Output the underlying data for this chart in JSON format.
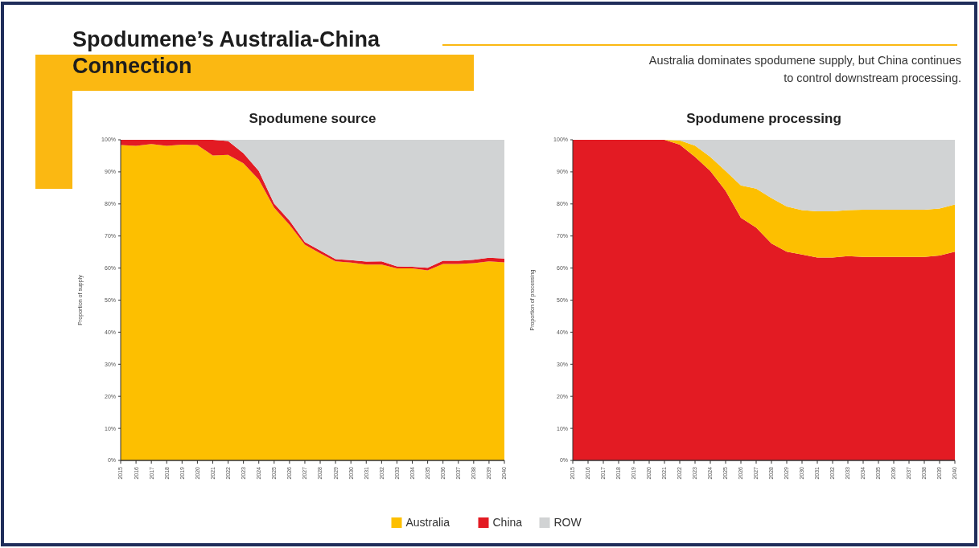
{
  "chart_data": [
    {
      "type": "area",
      "stacked": true,
      "title": "Spodumene source",
      "ylabel": "Proportion of supply",
      "legend": "bottom",
      "annotations": [
        "Spodumene’s Australia-China Connection",
        "Australia dominates spodumene supply, but China continues to control downstream processing."
      ],
      "categories": [
        "2015",
        "2016",
        "2017",
        "2018",
        "2019",
        "2020",
        "2021",
        "2022",
        "2023",
        "2024",
        "2025",
        "2026",
        "2027",
        "2028",
        "2029",
        "2030",
        "2031",
        "2032",
        "2033",
        "2034",
        "2035",
        "2036",
        "2037",
        "2038",
        "2039",
        "2040"
      ],
      "ylim": [
        0,
        100
      ],
      "yticks": [
        {
          "value": 0,
          "label": "0%"
        },
        {
          "value": 10,
          "label": "10%"
        },
        {
          "value": 20,
          "label": "20%"
        },
        {
          "value": 30,
          "label": "30%"
        },
        {
          "value": 40,
          "label": "40%"
        },
        {
          "value": 50,
          "label": "50%"
        },
        {
          "value": 60,
          "label": "60%"
        },
        {
          "value": 70,
          "label": "70%"
        },
        {
          "value": 80,
          "label": "80%"
        },
        {
          "value": 90,
          "label": "90%"
        },
        {
          "value": 100,
          "label": "100%"
        }
      ],
      "series": [
        {
          "name": "Australia",
          "color": "#fdbf00",
          "values": [
            98.4,
            98.1,
            98.7,
            98.1,
            98.5,
            98.4,
            95.1,
            95.3,
            92.7,
            87.6,
            78.8,
            73.5,
            67.3,
            64.6,
            62.1,
            61.7,
            61.1,
            61.1,
            59.9,
            59.9,
            59.3,
            61.3,
            61.3,
            61.5,
            62.1,
            61.8
          ]
        },
        {
          "name": "China",
          "color": "#e31b23",
          "values": [
            1.6,
            1.9,
            1.3,
            1.9,
            1.5,
            1.6,
            4.9,
            4.3,
            3.1,
            2.7,
            1.3,
            1.3,
            0.8,
            0.9,
            0.7,
            0.8,
            0.9,
            1.0,
            0.6,
            0.5,
            0.8,
            1.0,
            1.0,
            1.1,
            1.1,
            1.2
          ]
        },
        {
          "name": "ROW",
          "color": "#d1d3d4",
          "values": [
            0,
            0,
            0,
            0,
            0,
            0,
            0,
            0.4,
            4.2,
            9.7,
            19.9,
            25.2,
            31.9,
            34.5,
            37.2,
            37.5,
            38,
            37.9,
            39.5,
            39.6,
            39.9,
            37.7,
            37.7,
            37.4,
            36.8,
            37
          ]
        }
      ]
    },
    {
      "type": "area",
      "stacked": true,
      "title": "Spodumene processing",
      "ylabel": "Proportion of processing",
      "legend": "bottom",
      "categories": [
        "2015",
        "2016",
        "2017",
        "2018",
        "2019",
        "2020",
        "2021",
        "2022",
        "2023",
        "2024",
        "2025",
        "2026",
        "2027",
        "2028",
        "2029",
        "2030",
        "2031",
        "2032",
        "2033",
        "2034",
        "2035",
        "2036",
        "2037",
        "2038",
        "2039",
        "2040"
      ],
      "ylim": [
        0,
        100
      ],
      "yticks": [
        {
          "value": 0,
          "label": "0%"
        },
        {
          "value": 10,
          "label": "10%"
        },
        {
          "value": 20,
          "label": "20%"
        },
        {
          "value": 30,
          "label": "30%"
        },
        {
          "value": 40,
          "label": "40%"
        },
        {
          "value": 50,
          "label": "50%"
        },
        {
          "value": 60,
          "label": "60%"
        },
        {
          "value": 70,
          "label": "70%"
        },
        {
          "value": 80,
          "label": "80%"
        },
        {
          "value": 90,
          "label": "90%"
        },
        {
          "value": 100,
          "label": "100%"
        }
      ],
      "series": [
        {
          "name": "China",
          "color": "#e31b23",
          "values": [
            100,
            100,
            100,
            100,
            100,
            100,
            100,
            98.5,
            94.7,
            90.3,
            84.1,
            75.7,
            72.6,
            67.7,
            65.1,
            64.2,
            63.3,
            63.3,
            63.7,
            63.5,
            63.5,
            63.5,
            63.5,
            63.5,
            63.9,
            65.1
          ]
        },
        {
          "name": "Australia",
          "color": "#fdbf00",
          "values": [
            0,
            0,
            0,
            0,
            0,
            0,
            0,
            1.3,
            3.5,
            4.4,
            6.2,
            10.1,
            12.2,
            14.1,
            14.1,
            13.9,
            14.4,
            14.4,
            14.4,
            14.7,
            14.7,
            14.7,
            14.7,
            14.7,
            14.7,
            14.7
          ]
        },
        {
          "name": "ROW",
          "color": "#d1d3d4",
          "values": [
            0,
            0,
            0,
            0,
            0,
            0,
            0,
            0.2,
            1.8,
            5.3,
            9.7,
            14.2,
            15.2,
            18.2,
            20.8,
            21.9,
            22.3,
            22.3,
            21.9,
            21.8,
            21.8,
            21.8,
            21.8,
            21.8,
            21.4,
            20.2
          ]
        }
      ]
    }
  ]
}
